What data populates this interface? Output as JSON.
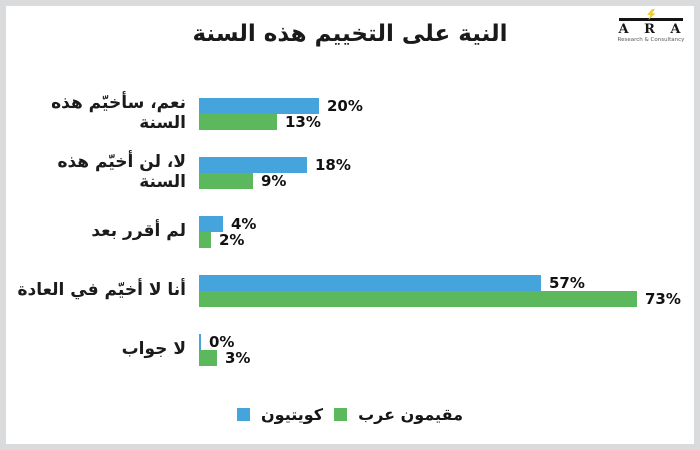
{
  "logo": {
    "letters": "A R A",
    "tagline": "Research & Consultancy",
    "bolt_color": "#f3cd29",
    "rule_color": "#141414"
  },
  "chart_data": {
    "type": "bar",
    "orientation": "horizontal",
    "title": "النية على التخييم هذه السنة",
    "categories": [
      "نعم، سأخيّم هذه السنة",
      "لا، لن أخيّم هذه السنة",
      "لم أقرر بعد",
      "أنا لا أخيّم في العادة",
      "لا جواب"
    ],
    "series": [
      {
        "name": "كويتيون",
        "color": "#45a4db",
        "values": [
          20,
          18,
          4,
          57,
          0
        ]
      },
      {
        "name": "مقيمون عرب",
        "color": "#5cb85c",
        "values": [
          13,
          9,
          2,
          73,
          3
        ]
      }
    ],
    "value_suffix": "%",
    "xlim": [
      0,
      80
    ],
    "grid": false,
    "legend_position": "bottom"
  }
}
